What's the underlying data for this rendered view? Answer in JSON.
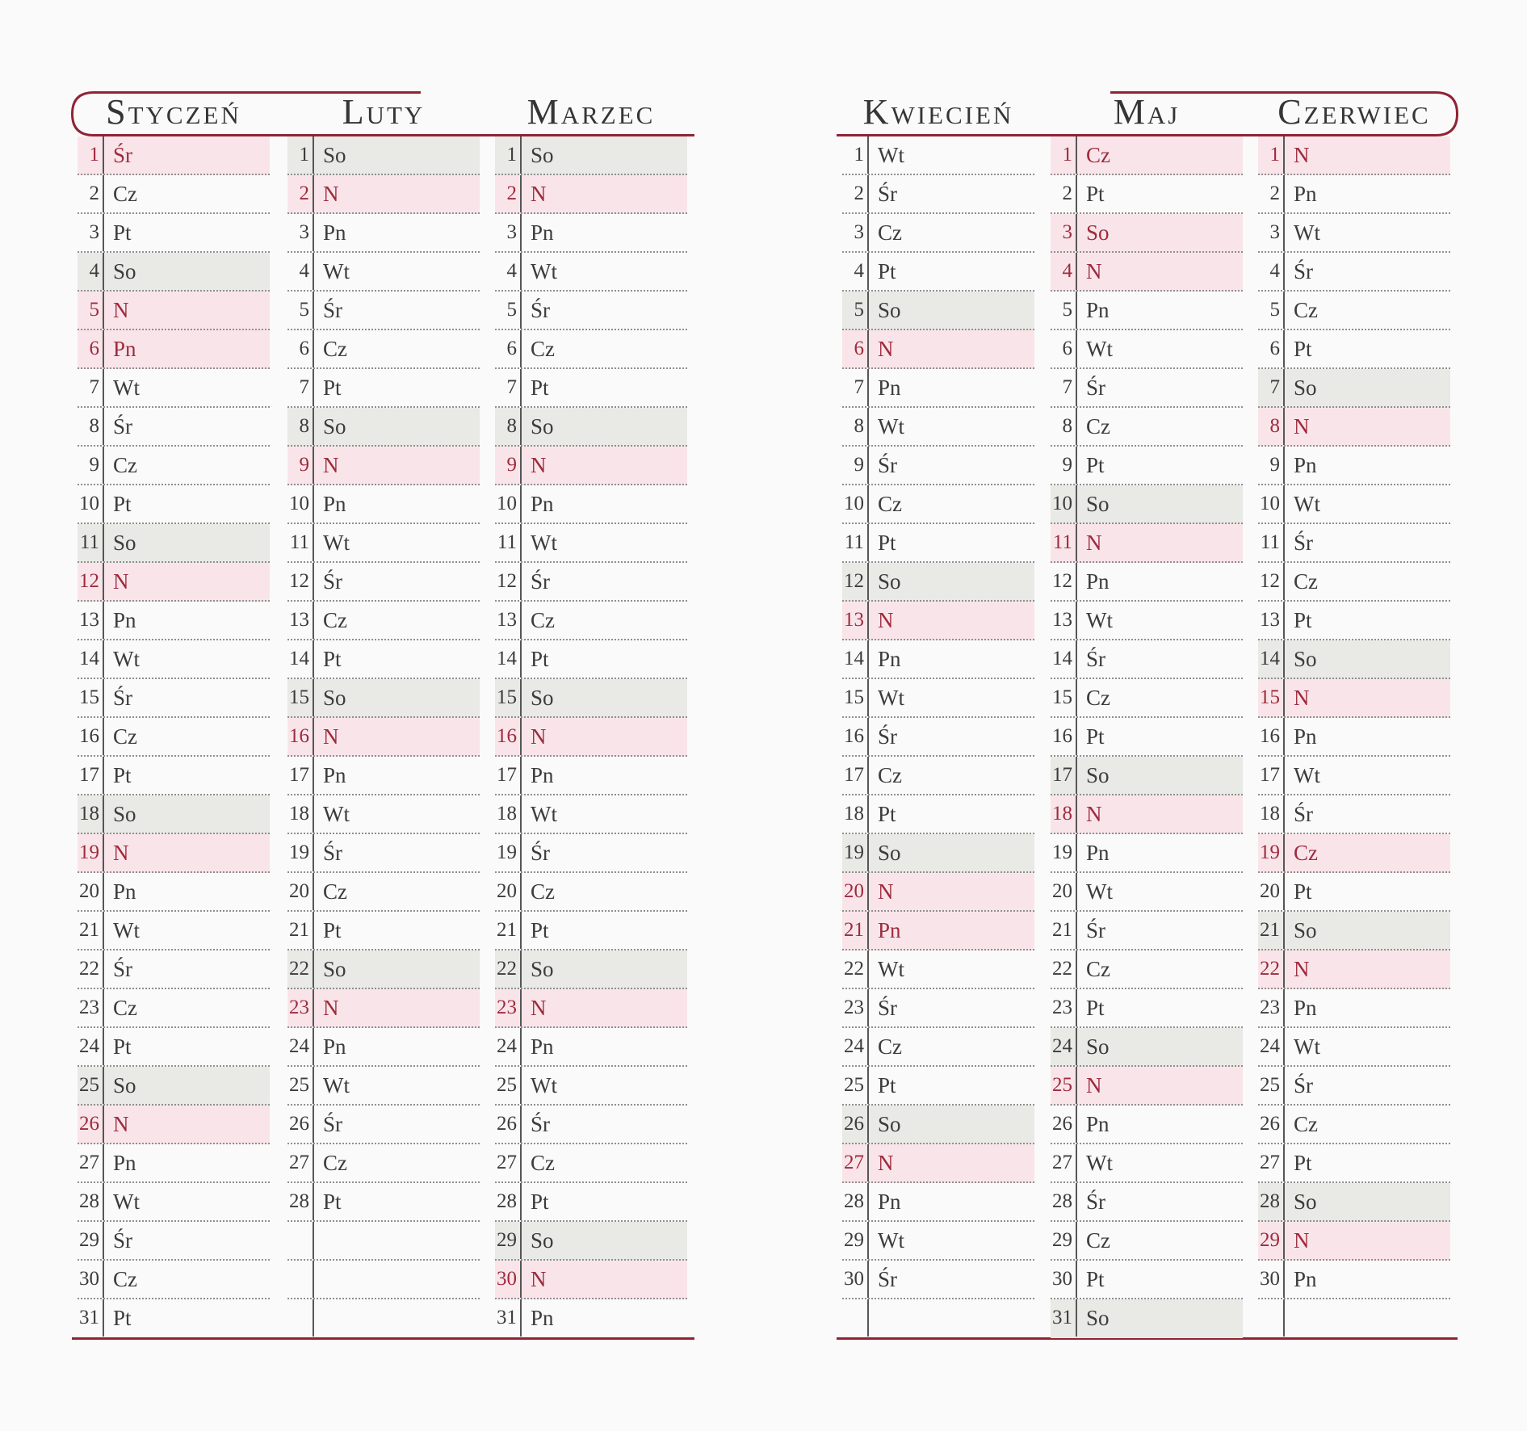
{
  "document": {
    "type": "planner-calendar-spread",
    "language": "Polish",
    "visible_months": "Styczeń – Czerwiec",
    "weekday_abbreviations": [
      "Pn",
      "Wt",
      "Śr",
      "Cz",
      "Pt",
      "So",
      "N"
    ]
  },
  "colors": {
    "accent_line": "#8e2435",
    "page_bg": "#fbfafa",
    "title_text": "#353535",
    "day_text": "#3c3c3c",
    "sunday_text": "#9e2b3e",
    "sunday_bg": "#f9e5e9",
    "saturday_bg": "#e9e9e6",
    "vertical_rule": "#565656",
    "dotted_rule": "#8f8f8f"
  },
  "pages": [
    {
      "side": "left",
      "months": [
        {
          "name": "Styczeń",
          "days": [
            {
              "d": "1",
              "w": "Śr",
              "h": "sun"
            },
            {
              "d": "2",
              "w": "Cz",
              "h": ""
            },
            {
              "d": "3",
              "w": "Pt",
              "h": ""
            },
            {
              "d": "4",
              "w": "So",
              "h": "sat"
            },
            {
              "d": "5",
              "w": "N",
              "h": "sun"
            },
            {
              "d": "6",
              "w": "Pn",
              "h": "sun"
            },
            {
              "d": "7",
              "w": "Wt",
              "h": ""
            },
            {
              "d": "8",
              "w": "Śr",
              "h": ""
            },
            {
              "d": "9",
              "w": "Cz",
              "h": ""
            },
            {
              "d": "10",
              "w": "Pt",
              "h": ""
            },
            {
              "d": "11",
              "w": "So",
              "h": "sat"
            },
            {
              "d": "12",
              "w": "N",
              "h": "sun"
            },
            {
              "d": "13",
              "w": "Pn",
              "h": ""
            },
            {
              "d": "14",
              "w": "Wt",
              "h": ""
            },
            {
              "d": "15",
              "w": "Śr",
              "h": ""
            },
            {
              "d": "16",
              "w": "Cz",
              "h": ""
            },
            {
              "d": "17",
              "w": "Pt",
              "h": ""
            },
            {
              "d": "18",
              "w": "So",
              "h": "sat"
            },
            {
              "d": "19",
              "w": "N",
              "h": "sun"
            },
            {
              "d": "20",
              "w": "Pn",
              "h": ""
            },
            {
              "d": "21",
              "w": "Wt",
              "h": ""
            },
            {
              "d": "22",
              "w": "Śr",
              "h": ""
            },
            {
              "d": "23",
              "w": "Cz",
              "h": ""
            },
            {
              "d": "24",
              "w": "Pt",
              "h": ""
            },
            {
              "d": "25",
              "w": "So",
              "h": "sat"
            },
            {
              "d": "26",
              "w": "N",
              "h": "sun"
            },
            {
              "d": "27",
              "w": "Pn",
              "h": ""
            },
            {
              "d": "28",
              "w": "Wt",
              "h": ""
            },
            {
              "d": "29",
              "w": "Śr",
              "h": ""
            },
            {
              "d": "30",
              "w": "Cz",
              "h": ""
            },
            {
              "d": "31",
              "w": "Pt",
              "h": ""
            }
          ]
        },
        {
          "name": "Luty",
          "days": [
            {
              "d": "1",
              "w": "So",
              "h": "sat"
            },
            {
              "d": "2",
              "w": "N",
              "h": "sun"
            },
            {
              "d": "3",
              "w": "Pn",
              "h": ""
            },
            {
              "d": "4",
              "w": "Wt",
              "h": ""
            },
            {
              "d": "5",
              "w": "Śr",
              "h": ""
            },
            {
              "d": "6",
              "w": "Cz",
              "h": ""
            },
            {
              "d": "7",
              "w": "Pt",
              "h": ""
            },
            {
              "d": "8",
              "w": "So",
              "h": "sat"
            },
            {
              "d": "9",
              "w": "N",
              "h": "sun"
            },
            {
              "d": "10",
              "w": "Pn",
              "h": ""
            },
            {
              "d": "11",
              "w": "Wt",
              "h": ""
            },
            {
              "d": "12",
              "w": "Śr",
              "h": ""
            },
            {
              "d": "13",
              "w": "Cz",
              "h": ""
            },
            {
              "d": "14",
              "w": "Pt",
              "h": ""
            },
            {
              "d": "15",
              "w": "So",
              "h": "sat"
            },
            {
              "d": "16",
              "w": "N",
              "h": "sun"
            },
            {
              "d": "17",
              "w": "Pn",
              "h": ""
            },
            {
              "d": "18",
              "w": "Wt",
              "h": ""
            },
            {
              "d": "19",
              "w": "Śr",
              "h": ""
            },
            {
              "d": "20",
              "w": "Cz",
              "h": ""
            },
            {
              "d": "21",
              "w": "Pt",
              "h": ""
            },
            {
              "d": "22",
              "w": "So",
              "h": "sat"
            },
            {
              "d": "23",
              "w": "N",
              "h": "sun"
            },
            {
              "d": "24",
              "w": "Pn",
              "h": ""
            },
            {
              "d": "25",
              "w": "Wt",
              "h": ""
            },
            {
              "d": "26",
              "w": "Śr",
              "h": ""
            },
            {
              "d": "27",
              "w": "Cz",
              "h": ""
            },
            {
              "d": "28",
              "w": "Pt",
              "h": ""
            }
          ]
        },
        {
          "name": "Marzec",
          "days": [
            {
              "d": "1",
              "w": "So",
              "h": "sat"
            },
            {
              "d": "2",
              "w": "N",
              "h": "sun"
            },
            {
              "d": "3",
              "w": "Pn",
              "h": ""
            },
            {
              "d": "4",
              "w": "Wt",
              "h": ""
            },
            {
              "d": "5",
              "w": "Śr",
              "h": ""
            },
            {
              "d": "6",
              "w": "Cz",
              "h": ""
            },
            {
              "d": "7",
              "w": "Pt",
              "h": ""
            },
            {
              "d": "8",
              "w": "So",
              "h": "sat"
            },
            {
              "d": "9",
              "w": "N",
              "h": "sun"
            },
            {
              "d": "10",
              "w": "Pn",
              "h": ""
            },
            {
              "d": "11",
              "w": "Wt",
              "h": ""
            },
            {
              "d": "12",
              "w": "Śr",
              "h": ""
            },
            {
              "d": "13",
              "w": "Cz",
              "h": ""
            },
            {
              "d": "14",
              "w": "Pt",
              "h": ""
            },
            {
              "d": "15",
              "w": "So",
              "h": "sat"
            },
            {
              "d": "16",
              "w": "N",
              "h": "sun"
            },
            {
              "d": "17",
              "w": "Pn",
              "h": ""
            },
            {
              "d": "18",
              "w": "Wt",
              "h": ""
            },
            {
              "d": "19",
              "w": "Śr",
              "h": ""
            },
            {
              "d": "20",
              "w": "Cz",
              "h": ""
            },
            {
              "d": "21",
              "w": "Pt",
              "h": ""
            },
            {
              "d": "22",
              "w": "So",
              "h": "sat"
            },
            {
              "d": "23",
              "w": "N",
              "h": "sun"
            },
            {
              "d": "24",
              "w": "Pn",
              "h": ""
            },
            {
              "d": "25",
              "w": "Wt",
              "h": ""
            },
            {
              "d": "26",
              "w": "Śr",
              "h": ""
            },
            {
              "d": "27",
              "w": "Cz",
              "h": ""
            },
            {
              "d": "28",
              "w": "Pt",
              "h": ""
            },
            {
              "d": "29",
              "w": "So",
              "h": "sat"
            },
            {
              "d": "30",
              "w": "N",
              "h": "sun"
            },
            {
              "d": "31",
              "w": "Pn",
              "h": ""
            }
          ]
        }
      ]
    },
    {
      "side": "right",
      "months": [
        {
          "name": "Kwiecień",
          "days": [
            {
              "d": "1",
              "w": "Wt",
              "h": ""
            },
            {
              "d": "2",
              "w": "Śr",
              "h": ""
            },
            {
              "d": "3",
              "w": "Cz",
              "h": ""
            },
            {
              "d": "4",
              "w": "Pt",
              "h": ""
            },
            {
              "d": "5",
              "w": "So",
              "h": "sat"
            },
            {
              "d": "6",
              "w": "N",
              "h": "sun"
            },
            {
              "d": "7",
              "w": "Pn",
              "h": ""
            },
            {
              "d": "8",
              "w": "Wt",
              "h": ""
            },
            {
              "d": "9",
              "w": "Śr",
              "h": ""
            },
            {
              "d": "10",
              "w": "Cz",
              "h": ""
            },
            {
              "d": "11",
              "w": "Pt",
              "h": ""
            },
            {
              "d": "12",
              "w": "So",
              "h": "sat"
            },
            {
              "d": "13",
              "w": "N",
              "h": "sun"
            },
            {
              "d": "14",
              "w": "Pn",
              "h": ""
            },
            {
              "d": "15",
              "w": "Wt",
              "h": ""
            },
            {
              "d": "16",
              "w": "Śr",
              "h": ""
            },
            {
              "d": "17",
              "w": "Cz",
              "h": ""
            },
            {
              "d": "18",
              "w": "Pt",
              "h": ""
            },
            {
              "d": "19",
              "w": "So",
              "h": "sat"
            },
            {
              "d": "20",
              "w": "N",
              "h": "sun"
            },
            {
              "d": "21",
              "w": "Pn",
              "h": "sun"
            },
            {
              "d": "22",
              "w": "Wt",
              "h": ""
            },
            {
              "d": "23",
              "w": "Śr",
              "h": ""
            },
            {
              "d": "24",
              "w": "Cz",
              "h": ""
            },
            {
              "d": "25",
              "w": "Pt",
              "h": ""
            },
            {
              "d": "26",
              "w": "So",
              "h": "sat"
            },
            {
              "d": "27",
              "w": "N",
              "h": "sun"
            },
            {
              "d": "28",
              "w": "Pn",
              "h": ""
            },
            {
              "d": "29",
              "w": "Wt",
              "h": ""
            },
            {
              "d": "30",
              "w": "Śr",
              "h": ""
            }
          ]
        },
        {
          "name": "Maj",
          "days": [
            {
              "d": "1",
              "w": "Cz",
              "h": "sun"
            },
            {
              "d": "2",
              "w": "Pt",
              "h": ""
            },
            {
              "d": "3",
              "w": "So",
              "h": "sun"
            },
            {
              "d": "4",
              "w": "N",
              "h": "sun"
            },
            {
              "d": "5",
              "w": "Pn",
              "h": ""
            },
            {
              "d": "6",
              "w": "Wt",
              "h": ""
            },
            {
              "d": "7",
              "w": "Śr",
              "h": ""
            },
            {
              "d": "8",
              "w": "Cz",
              "h": ""
            },
            {
              "d": "9",
              "w": "Pt",
              "h": ""
            },
            {
              "d": "10",
              "w": "So",
              "h": "sat"
            },
            {
              "d": "11",
              "w": "N",
              "h": "sun"
            },
            {
              "d": "12",
              "w": "Pn",
              "h": ""
            },
            {
              "d": "13",
              "w": "Wt",
              "h": ""
            },
            {
              "d": "14",
              "w": "Śr",
              "h": ""
            },
            {
              "d": "15",
              "w": "Cz",
              "h": ""
            },
            {
              "d": "16",
              "w": "Pt",
              "h": ""
            },
            {
              "d": "17",
              "w": "So",
              "h": "sat"
            },
            {
              "d": "18",
              "w": "N",
              "h": "sun"
            },
            {
              "d": "19",
              "w": "Pn",
              "h": ""
            },
            {
              "d": "20",
              "w": "Wt",
              "h": ""
            },
            {
              "d": "21",
              "w": "Śr",
              "h": ""
            },
            {
              "d": "22",
              "w": "Cz",
              "h": ""
            },
            {
              "d": "23",
              "w": "Pt",
              "h": ""
            },
            {
              "d": "24",
              "w": "So",
              "h": "sat"
            },
            {
              "d": "25",
              "w": "N",
              "h": "sun"
            },
            {
              "d": "26",
              "w": "Pn",
              "h": ""
            },
            {
              "d": "27",
              "w": "Wt",
              "h": ""
            },
            {
              "d": "28",
              "w": "Śr",
              "h": ""
            },
            {
              "d": "29",
              "w": "Cz",
              "h": ""
            },
            {
              "d": "30",
              "w": "Pt",
              "h": ""
            },
            {
              "d": "31",
              "w": "So",
              "h": "sat"
            }
          ]
        },
        {
          "name": "Czerwiec",
          "days": [
            {
              "d": "1",
              "w": "N",
              "h": "sun"
            },
            {
              "d": "2",
              "w": "Pn",
              "h": ""
            },
            {
              "d": "3",
              "w": "Wt",
              "h": ""
            },
            {
              "d": "4",
              "w": "Śr",
              "h": ""
            },
            {
              "d": "5",
              "w": "Cz",
              "h": ""
            },
            {
              "d": "6",
              "w": "Pt",
              "h": ""
            },
            {
              "d": "7",
              "w": "So",
              "h": "sat"
            },
            {
              "d": "8",
              "w": "N",
              "h": "sun"
            },
            {
              "d": "9",
              "w": "Pn",
              "h": ""
            },
            {
              "d": "10",
              "w": "Wt",
              "h": ""
            },
            {
              "d": "11",
              "w": "Śr",
              "h": ""
            },
            {
              "d": "12",
              "w": "Cz",
              "h": ""
            },
            {
              "d": "13",
              "w": "Pt",
              "h": ""
            },
            {
              "d": "14",
              "w": "So",
              "h": "sat"
            },
            {
              "d": "15",
              "w": "N",
              "h": "sun"
            },
            {
              "d": "16",
              "w": "Pn",
              "h": ""
            },
            {
              "d": "17",
              "w": "Wt",
              "h": ""
            },
            {
              "d": "18",
              "w": "Śr",
              "h": ""
            },
            {
              "d": "19",
              "w": "Cz",
              "h": "sun"
            },
            {
              "d": "20",
              "w": "Pt",
              "h": ""
            },
            {
              "d": "21",
              "w": "So",
              "h": "sat"
            },
            {
              "d": "22",
              "w": "N",
              "h": "sun"
            },
            {
              "d": "23",
              "w": "Pn",
              "h": ""
            },
            {
              "d": "24",
              "w": "Wt",
              "h": ""
            },
            {
              "d": "25",
              "w": "Śr",
              "h": ""
            },
            {
              "d": "26",
              "w": "Cz",
              "h": ""
            },
            {
              "d": "27",
              "w": "Pt",
              "h": ""
            },
            {
              "d": "28",
              "w": "So",
              "h": "sat"
            },
            {
              "d": "29",
              "w": "N",
              "h": "sun"
            },
            {
              "d": "30",
              "w": "Pn",
              "h": ""
            }
          ]
        }
      ]
    }
  ]
}
